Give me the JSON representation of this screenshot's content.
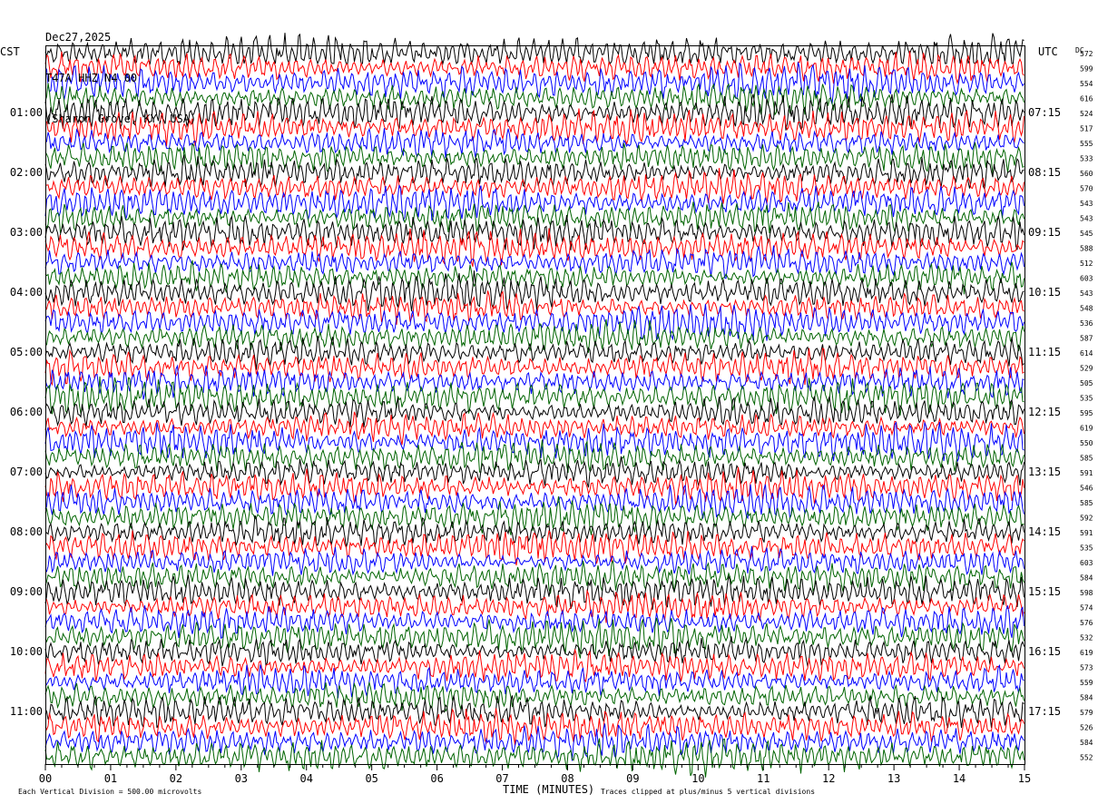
{
  "header": {
    "date": "Dec27,2025",
    "channel": "T47A HHZ N4 00",
    "location": "(Sharon Grove, KY, USA)"
  },
  "labels": {
    "left_zone": "CST",
    "right_zone": "UTC",
    "dc": "DC"
  },
  "footer": {
    "scale_note": "Each Vertical Division =  500.00 microvolts",
    "clip_note": "Traces clipped at plus/minus 5 vertical divisions"
  },
  "chart_data": {
    "type": "line",
    "title": "",
    "xlabel": "TIME (MINUTES)",
    "ylabel": "",
    "xlim": [
      0,
      15
    ],
    "x_ticks": [
      "00",
      "01",
      "02",
      "03",
      "04",
      "05",
      "06",
      "07",
      "08",
      "09",
      "10",
      "11",
      "12",
      "13",
      "14",
      "15"
    ],
    "row_count": 48,
    "row_colors": [
      "#000000",
      "#ff0000",
      "#0000ff",
      "#006400"
    ],
    "left_time_labels": [
      {
        "row": 4,
        "text": "01:00"
      },
      {
        "row": 8,
        "text": "02:00"
      },
      {
        "row": 12,
        "text": "03:00"
      },
      {
        "row": 16,
        "text": "04:00"
      },
      {
        "row": 20,
        "text": "05:00"
      },
      {
        "row": 24,
        "text": "06:00"
      },
      {
        "row": 28,
        "text": "07:00"
      },
      {
        "row": 32,
        "text": "08:00"
      },
      {
        "row": 36,
        "text": "09:00"
      },
      {
        "row": 40,
        "text": "10:00"
      },
      {
        "row": 44,
        "text": "11:00"
      }
    ],
    "right_time_labels": [
      {
        "row": 4,
        "text": "07:15"
      },
      {
        "row": 8,
        "text": "08:15"
      },
      {
        "row": 12,
        "text": "09:15"
      },
      {
        "row": 16,
        "text": "10:15"
      },
      {
        "row": 20,
        "text": "11:15"
      },
      {
        "row": 24,
        "text": "12:15"
      },
      {
        "row": 28,
        "text": "13:15"
      },
      {
        "row": 32,
        "text": "14:15"
      },
      {
        "row": 36,
        "text": "15:15"
      },
      {
        "row": 40,
        "text": "16:15"
      },
      {
        "row": 44,
        "text": "17:15"
      }
    ],
    "dc_offsets": [
      "572",
      "599",
      "554",
      "616",
      "524",
      "517",
      "555",
      "533",
      "560",
      "570",
      "543",
      "543",
      "545",
      "588",
      "512",
      "603",
      "543",
      "548",
      "536",
      "587",
      "614",
      "529",
      "505",
      "535",
      "595",
      "619",
      "550",
      "585",
      "591",
      "546",
      "585",
      "592",
      "591",
      "535",
      "603",
      "584",
      "598",
      "574",
      "576",
      "532",
      "619",
      "573",
      "559",
      "584",
      "579",
      "526",
      "584",
      "552"
    ]
  }
}
